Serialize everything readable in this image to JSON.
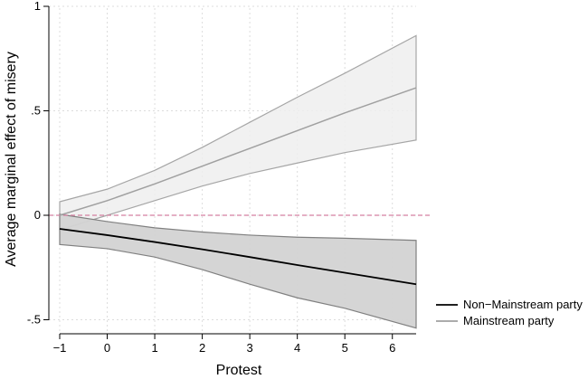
{
  "chart_data": {
    "type": "line",
    "title": "",
    "xlabel": "Protest",
    "ylabel": "Average marginal effect of misery",
    "xlim": [
      -1,
      6.5
    ],
    "ylim": [
      -0.52,
      1
    ],
    "x_ticks": [
      -1,
      0,
      1,
      2,
      3,
      4,
      5,
      6
    ],
    "x_tick_labels": [
      "−1",
      "0",
      "1",
      "2",
      "3",
      "4",
      "5",
      "6"
    ],
    "y_ticks": [
      -0.5,
      0,
      0.5,
      1
    ],
    "y_tick_labels": [
      "-.5",
      "0",
      ".5",
      "1"
    ],
    "grid": true,
    "reference_line": {
      "y": 0,
      "color": "#d47fa0",
      "style": "dashed"
    },
    "legend_position": "right",
    "series": [
      {
        "name": "Non−Mainstream party",
        "line_color": "#000000",
        "band_fill": "#d3d3d3",
        "band_stroke": "#808080",
        "x": [
          -1,
          0,
          1,
          2,
          3,
          4,
          5,
          6.5
        ],
        "values": [
          -0.065,
          -0.095,
          -0.128,
          -0.163,
          -0.2,
          -0.238,
          -0.275,
          -0.33
        ],
        "lower": [
          -0.14,
          -0.16,
          -0.2,
          -0.26,
          -0.33,
          -0.395,
          -0.445,
          -0.54
        ],
        "upper": [
          0.005,
          -0.03,
          -0.06,
          -0.08,
          -0.095,
          -0.105,
          -0.11,
          -0.12
        ]
      },
      {
        "name": "Mainstream party",
        "line_color": "#a0a0a0",
        "band_fill": "#efefef",
        "band_stroke": "#a6a6a6",
        "x": [
          -1,
          0,
          1,
          2,
          3,
          4,
          5,
          6.5
        ],
        "values": [
          0.0,
          0.07,
          0.15,
          0.235,
          0.32,
          0.405,
          0.49,
          0.61
        ],
        "lower": [
          -0.07,
          0.0,
          0.07,
          0.14,
          0.2,
          0.25,
          0.3,
          0.36
        ],
        "upper": [
          0.065,
          0.125,
          0.215,
          0.325,
          0.445,
          0.565,
          0.68,
          0.86
        ]
      }
    ]
  }
}
